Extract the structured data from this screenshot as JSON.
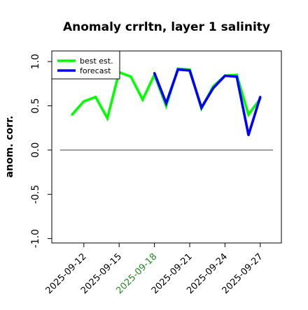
{
  "chart_data": {
    "type": "line",
    "title": "Anomaly crrltn, layer 1 salinity",
    "xlabel": "",
    "ylabel": "anom. corr.",
    "x": [
      "2025-09-11",
      "2025-09-12",
      "2025-09-13",
      "2025-09-14",
      "2025-09-15",
      "2025-09-16",
      "2025-09-17",
      "2025-09-18",
      "2025-09-19",
      "2025-09-20",
      "2025-09-21",
      "2025-09-22",
      "2025-09-23",
      "2025-09-24",
      "2025-09-25",
      "2025-09-26",
      "2025-09-27"
    ],
    "x_ticks": [
      "2025-09-12",
      "2025-09-15",
      "2025-09-18",
      "2025-09-21",
      "2025-09-24",
      "2025-09-27"
    ],
    "highlight_tick": "2025-09-18",
    "highlight_color": "#228B22",
    "ylim": [
      -1.05,
      1.12
    ],
    "y_ticks": [
      {
        "value": -1.0,
        "label": "-1.0"
      },
      {
        "value": -0.5,
        "label": "-0.5"
      },
      {
        "value": 0.0,
        "label": "0.0"
      },
      {
        "value": 0.5,
        "label": "0.5"
      },
      {
        "value": 1.0,
        "label": "1.0"
      }
    ],
    "grid": false,
    "reference_line": 0,
    "legend_position": "top-left",
    "series": [
      {
        "name": "best est.",
        "color": "#00ff00",
        "values": [
          0.4,
          0.55,
          0.6,
          0.36,
          0.88,
          0.83,
          0.57,
          0.85,
          0.5,
          0.92,
          0.91,
          0.47,
          0.72,
          0.84,
          0.85,
          0.4,
          0.58
        ]
      },
      {
        "name": "forecast",
        "color": "#0000ff",
        "values": [
          null,
          null,
          null,
          null,
          null,
          null,
          null,
          0.87,
          0.53,
          0.91,
          0.9,
          0.48,
          0.7,
          0.84,
          0.83,
          0.17,
          0.6
        ]
      }
    ]
  }
}
